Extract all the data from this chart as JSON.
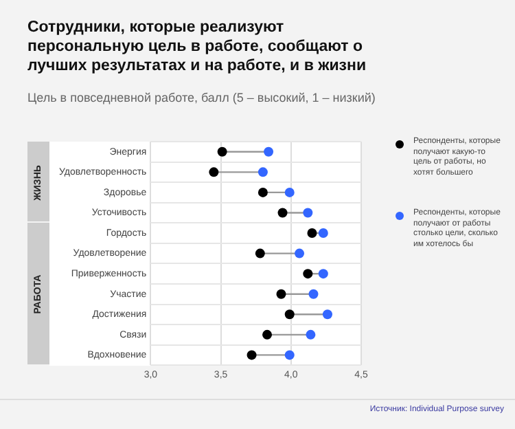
{
  "chart_data": {
    "type": "scatter",
    "orientation": "horizontal",
    "title": "Сотрудники, которые реализуют персональную цель в работе, сообщают о лучших результатах и на работе, и в жизни",
    "subtitle": "Цель в повседневной работе, балл (5 – высокий, 1 – низкий)",
    "categories": [
      "Энергия",
      "Удовлетворенность",
      "Здоровье",
      "Усточивость",
      "Гордость",
      "Удовлетворение",
      "Приверженность",
      "Участие",
      "Достижения",
      "Связи",
      "Вдохновение"
    ],
    "series": [
      {
        "name": "Респонденты, которые получают какую-то цель от работы, но хотят большего",
        "color": "#000000",
        "values": [
          3.51,
          3.45,
          3.8,
          3.94,
          4.15,
          3.78,
          4.12,
          3.93,
          3.99,
          3.83,
          3.72
        ]
      },
      {
        "name": "Респонденты, которые получают от работы столько цели, сколько им хотелось бы",
        "color": "#3366ff",
        "values": [
          3.84,
          3.8,
          3.99,
          4.12,
          4.23,
          4.06,
          4.23,
          4.16,
          4.26,
          4.14,
          3.99
        ]
      }
    ],
    "xlim": [
      3.0,
      4.5
    ],
    "xticks": [
      {
        "value": 3.0,
        "label": "3,0"
      },
      {
        "value": 3.5,
        "label": "3,5"
      },
      {
        "value": 4.0,
        "label": "4,0"
      },
      {
        "value": 4.5,
        "label": "4,5"
      }
    ],
    "annotations": [
      "ЖИЗНЬ",
      "РАБОТА",
      "Источник: Individual Purpose survey"
    ],
    "grid": true,
    "legend": "right",
    "marker": "circle"
  }
}
